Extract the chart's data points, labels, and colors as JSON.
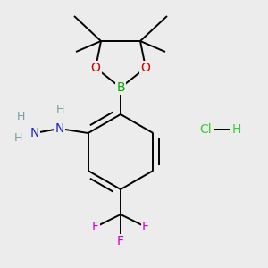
{
  "bg_color": "#ececec",
  "fig_size": [
    3.0,
    3.0
  ],
  "dpi": 100,
  "atom_colors": {
    "C": "#000000",
    "H": "#7a9e9e",
    "N": "#2222cc",
    "O": "#cc0000",
    "B": "#00aa00",
    "F": "#cc00cc",
    "Cl": "#33cc33",
    "HCl_H": "#33cc33"
  },
  "bond_color": "#000000",
  "bond_width": 1.4,
  "font_size_atoms": 10,
  "font_size_small": 8.5
}
